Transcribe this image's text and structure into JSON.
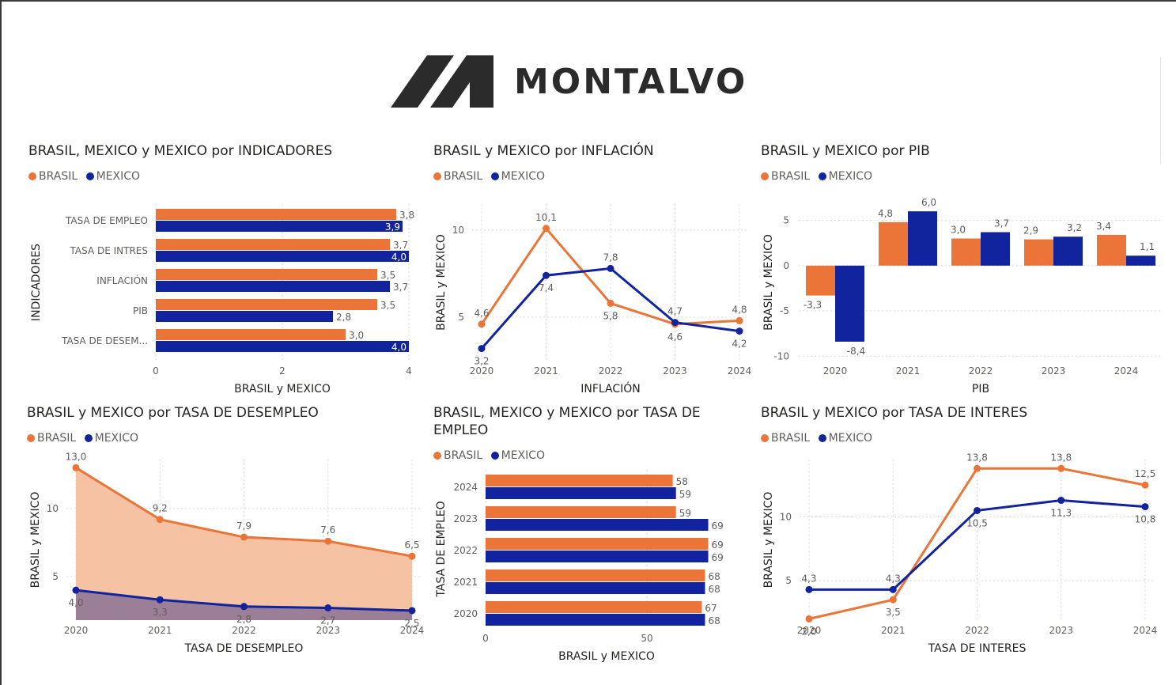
{
  "brand": {
    "name": "MONTALVO",
    "logo_color": "#2b2b2b"
  },
  "colors": {
    "brasil": "#EB7538",
    "mexico": "#12239E",
    "brasil_area": "#F5C2A4",
    "mexico_area": "#9B7F96"
  },
  "legend": {
    "brasil": "BRASIL",
    "mexico": "MEXICO"
  },
  "chart_data": [
    {
      "id": "indicadores",
      "type": "bar",
      "orientation": "horizontal",
      "title": "BRASIL, MEXICO y MEXICO por INDICADORES",
      "xlabel": "BRASIL y MEXICO",
      "ylabel": "INDICADORES",
      "xlim": [
        0,
        4
      ],
      "xticks": [
        "0",
        "2",
        "4"
      ],
      "xtick_values": [
        0,
        2,
        4
      ],
      "categories": [
        "TASA DE EMPLEO",
        "TASA DE INTRES",
        "INFLACIÓN",
        "PIB",
        "TASA DE DESEM..."
      ],
      "series": [
        {
          "name": "BRASIL",
          "values": [
            3.8,
            3.7,
            3.5,
            3.5,
            3.0
          ],
          "labels": [
            "3,8",
            "3,7",
            "3,5",
            "3,5",
            "3,0"
          ]
        },
        {
          "name": "MEXICO",
          "values": [
            3.9,
            4.0,
            3.7,
            2.8,
            4.0
          ],
          "labels": [
            "3,9",
            "4,0",
            "3,7",
            "2,8",
            "4,0"
          ]
        }
      ],
      "legend_position": "top-left",
      "grid": true
    },
    {
      "id": "inflacion",
      "type": "line",
      "title": "BRASIL y MEXICO por INFLACIÓN",
      "xlabel": "INFLACIÓN",
      "ylabel": "BRASIL y MEXICO",
      "categories": [
        "2020",
        "2021",
        "2022",
        "2023",
        "2024"
      ],
      "ylim": [
        2.5,
        11.5
      ],
      "yticks": [
        "5",
        "10"
      ],
      "ytick_values": [
        5,
        10
      ],
      "series": [
        {
          "name": "BRASIL",
          "values": [
            4.6,
            10.1,
            5.8,
            4.6,
            4.8
          ],
          "labels": [
            "4,6",
            "10,1",
            "5,8",
            "4,6",
            "4,8"
          ]
        },
        {
          "name": "MEXICO",
          "values": [
            3.2,
            7.4,
            7.8,
            4.7,
            4.2
          ],
          "labels": [
            "3,2",
            "7,4",
            "7,8",
            "4,7",
            "4,2"
          ]
        }
      ],
      "legend_position": "top-left",
      "grid": true
    },
    {
      "id": "pib",
      "type": "bar",
      "title": "BRASIL y MEXICO por PIB",
      "xlabel": "PIB",
      "ylabel": "BRASIL y MEXICO",
      "categories": [
        "2020",
        "2021",
        "2022",
        "2023",
        "2024"
      ],
      "ylim": [
        -10.5,
        6.8
      ],
      "yticks": [
        "5",
        "0",
        "-5",
        "-10"
      ],
      "ytick_values": [
        5,
        0,
        -5,
        -10
      ],
      "series": [
        {
          "name": "BRASIL",
          "values": [
            -3.3,
            4.8,
            3.0,
            2.9,
            3.4
          ],
          "labels": [
            "-3,3",
            "4,8",
            "3,0",
            "2,9",
            "3,4"
          ]
        },
        {
          "name": "MEXICO",
          "values": [
            -8.4,
            6.0,
            3.7,
            3.2,
            1.1
          ],
          "labels": [
            "-8,4",
            "6,0",
            "3,7",
            "3,2",
            "1,1"
          ]
        }
      ],
      "legend_position": "top-left",
      "grid": true
    },
    {
      "id": "desempleo",
      "type": "area",
      "title": "BRASIL y MEXICO por TASA DE DESEMPLEO",
      "xlabel": "TASA DE DESEMPLEO",
      "ylabel": "BRASIL y MEXICO",
      "categories": [
        "2020",
        "2021",
        "2022",
        "2023",
        "2024"
      ],
      "ylim": [
        1.8,
        13.6
      ],
      "yticks": [
        "5",
        "10"
      ],
      "ytick_values": [
        5,
        10
      ],
      "series": [
        {
          "name": "BRASIL",
          "values": [
            13.0,
            9.2,
            7.9,
            7.6,
            6.5
          ],
          "labels": [
            "13,0",
            "9,2",
            "7,9",
            "7,6",
            "6,5"
          ]
        },
        {
          "name": "MEXICO",
          "values": [
            4.0,
            3.3,
            2.8,
            2.7,
            2.5
          ],
          "labels": [
            "4,0",
            "3,3",
            "2,8",
            "2,7",
            "2,5"
          ]
        }
      ],
      "legend_position": "top-left",
      "grid": true
    },
    {
      "id": "empleo",
      "type": "bar",
      "orientation": "horizontal",
      "title": "BRASIL, MEXICO y MEXICO por TASA DE EMPLEO",
      "xlabel": "BRASIL y MEXICO",
      "ylabel": "TASA DE EMPLEO",
      "xlim": [
        0,
        75
      ],
      "xticks": [
        "0",
        "50"
      ],
      "xtick_values": [
        0,
        50
      ],
      "categories": [
        "2024",
        "2023",
        "2022",
        "2021",
        "2020"
      ],
      "series": [
        {
          "name": "BRASIL",
          "values": [
            58,
            59,
            69,
            68,
            67
          ],
          "labels": [
            "58",
            "59",
            "69",
            "68",
            "67"
          ]
        },
        {
          "name": "MEXICO",
          "values": [
            59,
            69,
            69,
            68,
            68
          ],
          "labels": [
            "59",
            "69",
            "69",
            "68",
            "68"
          ]
        }
      ],
      "legend_position": "top-left",
      "grid": true
    },
    {
      "id": "interes",
      "type": "line",
      "title": "BRASIL y MEXICO por TASA DE INTERES",
      "xlabel": "TASA DE INTERES",
      "ylabel": "BRASIL y MEXICO",
      "categories": [
        "2020",
        "2021",
        "2022",
        "2023",
        "2024"
      ],
      "ylim": [
        1.9,
        14.5
      ],
      "yticks": [
        "5",
        "10"
      ],
      "ytick_values": [
        5,
        10
      ],
      "series": [
        {
          "name": "BRASIL",
          "values": [
            2.0,
            3.5,
            13.8,
            13.8,
            12.5
          ],
          "labels": [
            "2,0",
            "3,5",
            "13,8",
            "13,8",
            "12,5"
          ]
        },
        {
          "name": "MEXICO",
          "values": [
            4.3,
            4.3,
            10.5,
            11.3,
            10.8
          ],
          "labels": [
            "4,3",
            "4,3",
            "10,5",
            "11,3",
            "10,8"
          ]
        }
      ],
      "legend_position": "top-left",
      "grid": true
    }
  ]
}
